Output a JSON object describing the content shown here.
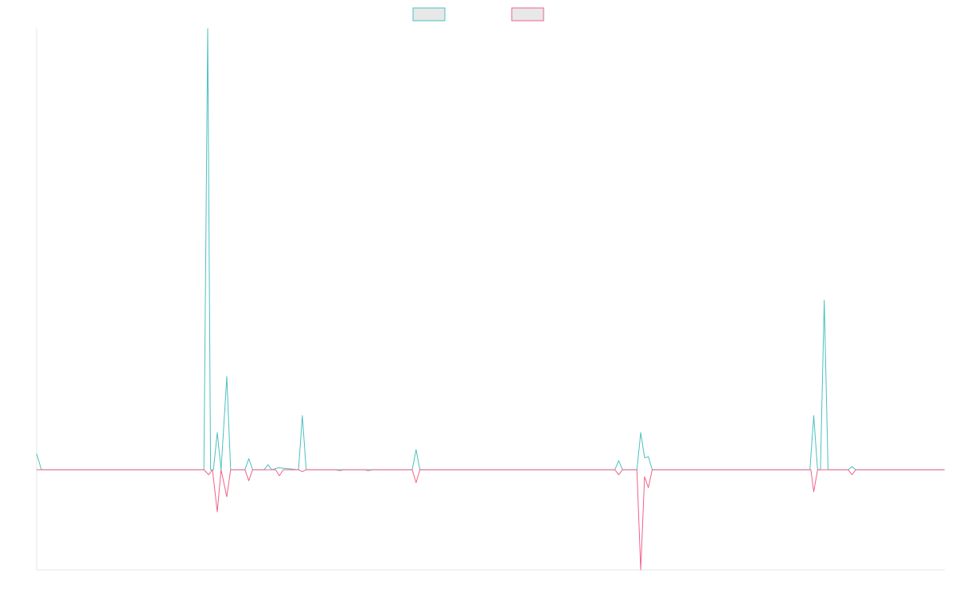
{
  "chart_data": {
    "type": "line",
    "title": "",
    "xlabel": "",
    "ylabel": "",
    "legend": "top-center",
    "grid": false,
    "xlim": [
      0,
      95
    ],
    "ylim": [
      -10,
      44
    ],
    "series": [
      {
        "color": "#4bc0c0",
        "legend_fill": "#e8e8e8",
        "points": [
          [
            0,
            1.6
          ],
          [
            0.5,
            0
          ],
          [
            17.5,
            0
          ],
          [
            17.9,
            44
          ],
          [
            18.2,
            0
          ],
          [
            18.5,
            0
          ],
          [
            18.9,
            3.7
          ],
          [
            19.3,
            0
          ],
          [
            19.9,
            9.3
          ],
          [
            20.3,
            0
          ],
          [
            21.8,
            0
          ],
          [
            22.2,
            1.1
          ],
          [
            22.6,
            0
          ],
          [
            23.8,
            0
          ],
          [
            24.2,
            0.5
          ],
          [
            24.6,
            0
          ],
          [
            25.3,
            0.2
          ],
          [
            27.4,
            0
          ],
          [
            27.8,
            5.4
          ],
          [
            28.2,
            0
          ],
          [
            37.7,
            0
          ],
          [
            39.3,
            0
          ],
          [
            39.7,
            2.0
          ],
          [
            40.1,
            0
          ],
          [
            60.5,
            0
          ],
          [
            60.9,
            0.9
          ],
          [
            61.3,
            0
          ],
          [
            62.8,
            0
          ],
          [
            63.2,
            3.7
          ],
          [
            63.6,
            1.2
          ],
          [
            64.0,
            1.3
          ],
          [
            64.4,
            0
          ],
          [
            80.9,
            0
          ],
          [
            81.3,
            5.4
          ],
          [
            81.7,
            0
          ],
          [
            82.0,
            0
          ],
          [
            82.4,
            16.9
          ],
          [
            82.8,
            0
          ],
          [
            84.9,
            0
          ],
          [
            85.3,
            0.3
          ],
          [
            85.7,
            0
          ],
          [
            95,
            0
          ]
        ]
      },
      {
        "color": "#f0628a",
        "legend_fill": "#e8e8e8",
        "points": [
          [
            0,
            0
          ],
          [
            17.5,
            0
          ],
          [
            18.0,
            -0.5
          ],
          [
            18.4,
            0
          ],
          [
            18.9,
            -4.2
          ],
          [
            19.3,
            0
          ],
          [
            19.9,
            -2.7
          ],
          [
            20.3,
            0
          ],
          [
            21.8,
            0
          ],
          [
            22.2,
            -1.1
          ],
          [
            22.6,
            0
          ],
          [
            25.0,
            0
          ],
          [
            25.4,
            -0.6
          ],
          [
            25.8,
            0
          ],
          [
            27.4,
            0
          ],
          [
            27.8,
            -0.2
          ],
          [
            28.2,
            0
          ],
          [
            31.3,
            0
          ],
          [
            31.7,
            -0.1
          ],
          [
            32.1,
            0
          ],
          [
            34.3,
            0
          ],
          [
            34.7,
            -0.1
          ],
          [
            35.1,
            0
          ],
          [
            39.3,
            0
          ],
          [
            39.7,
            -1.3
          ],
          [
            40.1,
            0
          ],
          [
            60.5,
            0
          ],
          [
            60.9,
            -0.5
          ],
          [
            61.3,
            0
          ],
          [
            62.8,
            0
          ],
          [
            63.2,
            -10
          ],
          [
            63.6,
            -0.7
          ],
          [
            64.0,
            -1.8
          ],
          [
            64.4,
            0
          ],
          [
            81.0,
            0
          ],
          [
            81.3,
            -2.2
          ],
          [
            81.7,
            0
          ],
          [
            84.9,
            0
          ],
          [
            85.3,
            -0.5
          ],
          [
            85.7,
            0
          ],
          [
            95,
            0
          ]
        ]
      }
    ]
  }
}
